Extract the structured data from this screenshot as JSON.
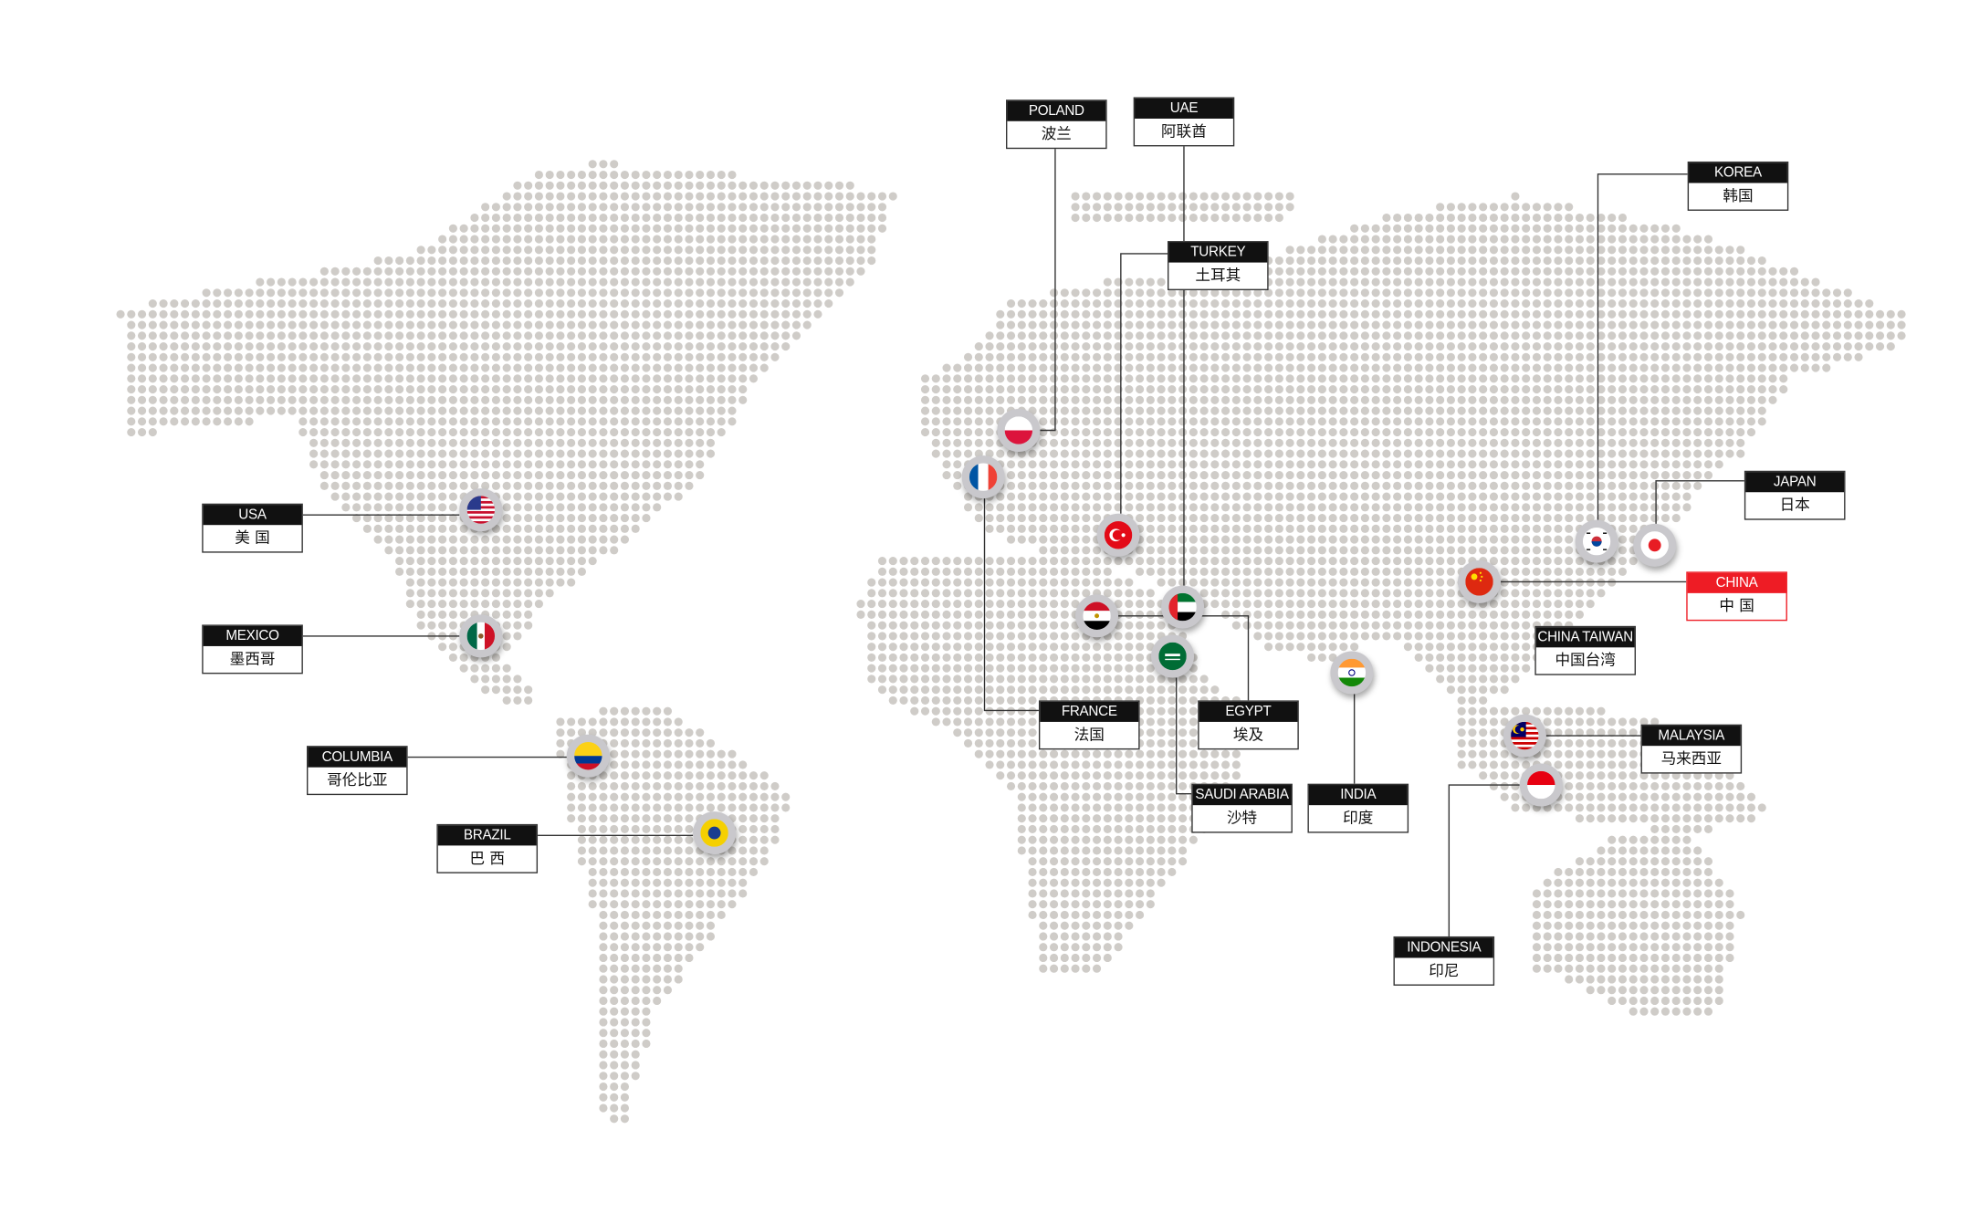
{
  "map": {
    "dot_color": "#cfccc8",
    "line_color": "#333333",
    "highlight_color": "#ee1c25",
    "locations": [
      {
        "en": "USA",
        "zh": "美 国",
        "flag": "usa-flag-icon"
      },
      {
        "en": "MEXICO",
        "zh": "墨西哥",
        "flag": "mexico-flag-icon"
      },
      {
        "en": "COLUMBIA",
        "zh": "哥伦比亚",
        "flag": "colombia-flag-icon"
      },
      {
        "en": "BRAZIL",
        "zh": "巴 西",
        "flag": "brazil-flag-icon"
      },
      {
        "en": "POLAND",
        "zh": "波兰",
        "flag": "poland-flag-icon"
      },
      {
        "en": "UAE",
        "zh": "阿联酋",
        "flag": "uae-flag-icon"
      },
      {
        "en": "TURKEY",
        "zh": "土耳其",
        "flag": "turkey-flag-icon"
      },
      {
        "en": "FRANCE",
        "zh": "法国",
        "flag": "france-flag-icon"
      },
      {
        "en": "EGYPT",
        "zh": "埃及",
        "flag": "egypt-flag-icon"
      },
      {
        "en": "SAUDI ARABIA",
        "zh": "沙特",
        "flag": "saudi-arabia-flag-icon"
      },
      {
        "en": "INDIA",
        "zh": "印度",
        "flag": "india-flag-icon"
      },
      {
        "en": "KOREA",
        "zh": "韩国",
        "flag": "korea-flag-icon"
      },
      {
        "en": "JAPAN",
        "zh": "日本",
        "flag": "japan-flag-icon"
      },
      {
        "en": "CHINA",
        "zh": "中 国",
        "flag": "china-flag-icon",
        "highlight": true
      },
      {
        "en": "CHINA TAIWAN",
        "zh": "中国台湾"
      },
      {
        "en": "MALAYSIA",
        "zh": "马来西亚",
        "flag": "malaysia-flag-icon"
      },
      {
        "en": "INDONESIA",
        "zh": "印尼",
        "flag": "indonesia-flag-icon"
      }
    ]
  }
}
